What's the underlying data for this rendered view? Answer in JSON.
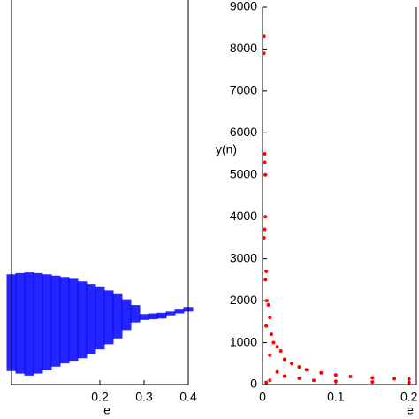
{
  "chart_data": [
    {
      "type": "range",
      "xlabel": "e",
      "x": [
        0,
        0.02,
        0.04,
        0.06,
        0.08,
        0.1,
        0.12,
        0.14,
        0.16,
        0.18,
        0.2,
        0.22,
        0.24,
        0.26,
        0.28,
        0.3,
        0.32,
        0.34,
        0.36,
        0.38,
        0.4
      ],
      "upper": [
        1.72,
        1.74,
        1.75,
        1.74,
        1.72,
        1.7,
        1.68,
        1.65,
        1.61,
        1.57,
        1.52,
        1.47,
        1.41,
        1.33,
        1.24,
        1.1,
        1.11,
        1.12,
        1.14,
        1.17,
        1.21
      ],
      "lower": [
        0.21,
        0.17,
        0.14,
        0.17,
        0.22,
        0.28,
        0.33,
        0.37,
        0.41,
        0.48,
        0.55,
        0.63,
        0.72,
        0.85,
        0.97,
        1.01,
        1.02,
        1.03,
        1.08,
        1.11,
        1.14
      ],
      "color": "#0000ff",
      "xlim": [
        0,
        0.4
      ],
      "xticks": [
        0.2,
        0.3,
        0.4
      ],
      "ylim": [
        0,
        6
      ]
    },
    {
      "type": "scatter",
      "xlabel": "e",
      "ylabel": "y(n)",
      "x": [
        0.002,
        0.002,
        0.003,
        0.003,
        0.004,
        0.004,
        0.003,
        0.002,
        0.005,
        0.004,
        0.006,
        0.008,
        0.01,
        0.005,
        0.012,
        0.015,
        0.02,
        0.025,
        0.01,
        0.03,
        0.04,
        0.05,
        0.06,
        0.08,
        0.1,
        0.12,
        0.15,
        0.18,
        0.2,
        0.02,
        0.03,
        0.05,
        0.07,
        0.1,
        0.15,
        0.2,
        0.01,
        0.005
      ],
      "values": [
        8300,
        7900,
        5500,
        5300,
        5000,
        4000,
        3700,
        3500,
        2700,
        2500,
        2000,
        1900,
        1600,
        1400,
        1200,
        1000,
        900,
        800,
        700,
        600,
        500,
        420,
        350,
        280,
        230,
        190,
        160,
        140,
        130,
        300,
        200,
        150,
        100,
        80,
        60,
        50,
        100,
        50
      ],
      "color": "#ff0000",
      "xlim": [
        0,
        0.21
      ],
      "xticks": [
        0,
        0.1,
        0.2
      ],
      "ylim": [
        0,
        9000
      ],
      "yticks": [
        0,
        1000,
        2000,
        3000,
        4000,
        5000,
        6000,
        7000,
        8000,
        9000
      ]
    }
  ]
}
